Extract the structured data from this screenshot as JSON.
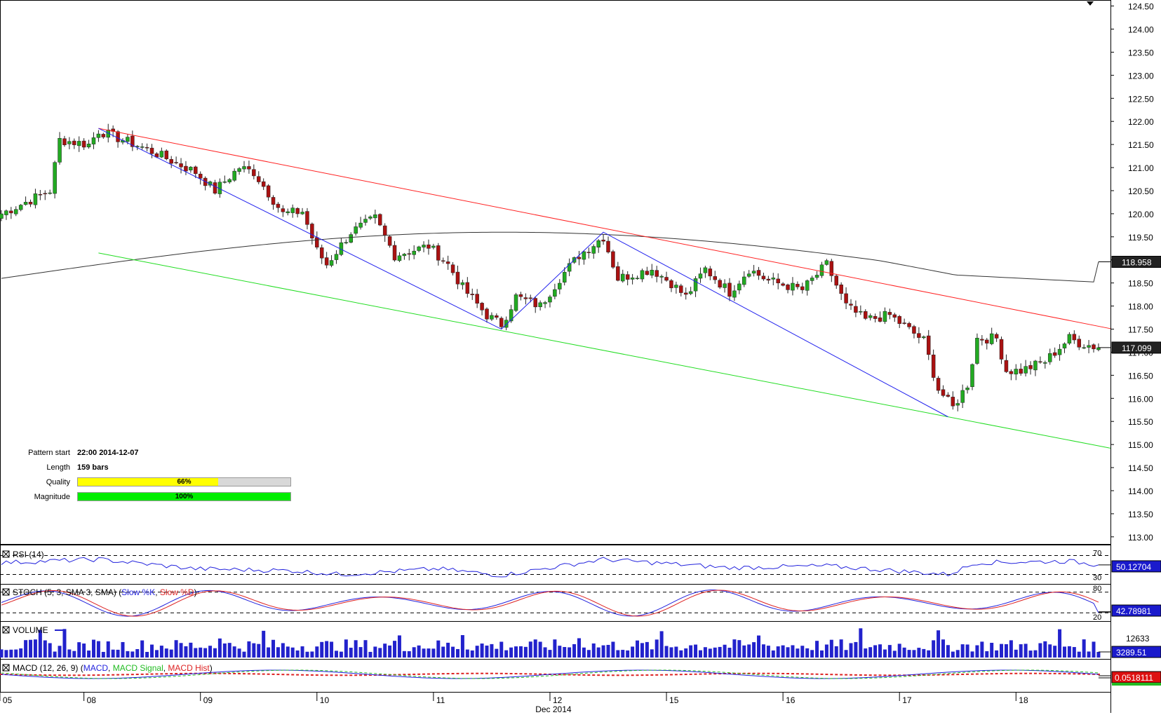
{
  "colors": {
    "bull": "#22aa22",
    "bear": "#aa1111",
    "resistance": "#ff2222",
    "support": "#22dd22",
    "zigzag": "#2222ee",
    "ma": "#333333",
    "quality_fill": "#ffff00",
    "magnitude_fill": "#00ee00",
    "rsi": "#2222dd",
    "stoch_k": "#2222dd",
    "stoch_d": "#dd2222",
    "volume": "#2222cc",
    "macd": "#2222dd",
    "macd_signal": "#22bb22",
    "macd_hist": "#dd2222",
    "tag_bg": "#1a1acc"
  },
  "pattern_info": {
    "start_label": "Pattern start",
    "start_value": "22:00 2014-12-07",
    "length_label": "Length",
    "length_value": "159 bars",
    "quality_label": "Quality",
    "quality_value": "66%",
    "quality_fraction": 0.66,
    "magnitude_label": "Magnitude",
    "magnitude_value": "100%",
    "magnitude_fraction": 1.0
  },
  "chart_data": [
    {
      "type": "candlestick",
      "title": "",
      "y_ticks": [
        "124.50",
        "124.00",
        "123.50",
        "123.00",
        "122.50",
        "122.00",
        "121.50",
        "121.00",
        "120.50",
        "120.00",
        "119.50",
        "119.00",
        "118.50",
        "118.00",
        "117.50",
        "117.00",
        "116.50",
        "116.00",
        "115.50",
        "115.00",
        "114.50",
        "114.00",
        "113.50",
        "113.00"
      ],
      "ylim": [
        112.8,
        124.6
      ],
      "x_ticks": [
        "05",
        "08",
        "09",
        "10",
        "11",
        "12",
        "15",
        "16",
        "17",
        "18"
      ],
      "x_month_label": "Dec 2014",
      "price_tags": [
        "118.958",
        "117.099"
      ],
      "price_tag_values": [
        118.958,
        117.099
      ],
      "moving_average_last": 118.958,
      "last_close": 117.099,
      "pattern": {
        "name": "descending channel",
        "resistance": [
          {
            "bar": 20,
            "price": 121.85
          },
          {
            "bar": 124,
            "price": 119.6
          },
          {
            "bar": 241,
            "price": 117.25
          }
        ],
        "support": [
          {
            "bar": 20,
            "price": 119.15
          },
          {
            "bar": 103,
            "price": 117.5
          },
          {
            "bar": 195,
            "price": 115.6
          }
        ],
        "zigzag": [
          {
            "bar": 20,
            "price": 121.85
          },
          {
            "bar": 103,
            "price": 117.5
          },
          {
            "bar": 124,
            "price": 119.6
          },
          {
            "bar": 195,
            "price": 115.6
          }
        ]
      },
      "candle_anchors": [
        {
          "bar": 0,
          "price": 120.0
        },
        {
          "bar": 10,
          "price": 120.5
        },
        {
          "bar": 12,
          "price": 121.6
        },
        {
          "bar": 18,
          "price": 121.5
        },
        {
          "bar": 20,
          "price": 121.8
        },
        {
          "bar": 30,
          "price": 121.4
        },
        {
          "bar": 40,
          "price": 120.9
        },
        {
          "bar": 44,
          "price": 120.5
        },
        {
          "bar": 49,
          "price": 121.0
        },
        {
          "bar": 52,
          "price": 120.9
        },
        {
          "bar": 58,
          "price": 120.0
        },
        {
          "bar": 62,
          "price": 120.05
        },
        {
          "bar": 65,
          "price": 119.2
        },
        {
          "bar": 67,
          "price": 118.9
        },
        {
          "bar": 72,
          "price": 119.6
        },
        {
          "bar": 77,
          "price": 119.9
        },
        {
          "bar": 81,
          "price": 119.1
        },
        {
          "bar": 88,
          "price": 119.3
        },
        {
          "bar": 92,
          "price": 118.9
        },
        {
          "bar": 95,
          "price": 118.4
        },
        {
          "bar": 100,
          "price": 117.8
        },
        {
          "bar": 103,
          "price": 117.6
        },
        {
          "bar": 106,
          "price": 118.2
        },
        {
          "bar": 111,
          "price": 118.0
        },
        {
          "bar": 115,
          "price": 118.6
        },
        {
          "bar": 119,
          "price": 119.1
        },
        {
          "bar": 124,
          "price": 119.5
        },
        {
          "bar": 127,
          "price": 118.6
        },
        {
          "bar": 134,
          "price": 118.8
        },
        {
          "bar": 138,
          "price": 118.5
        },
        {
          "bar": 141,
          "price": 118.2
        },
        {
          "bar": 145,
          "price": 118.8
        },
        {
          "bar": 150,
          "price": 118.3
        },
        {
          "bar": 154,
          "price": 118.8
        },
        {
          "bar": 158,
          "price": 118.55
        },
        {
          "bar": 165,
          "price": 118.35
        },
        {
          "bar": 170,
          "price": 118.9
        },
        {
          "bar": 174,
          "price": 118.0
        },
        {
          "bar": 178,
          "price": 117.7
        },
        {
          "bar": 183,
          "price": 117.8
        },
        {
          "bar": 190,
          "price": 117.25
        },
        {
          "bar": 193,
          "price": 116.2
        },
        {
          "bar": 196,
          "price": 115.8
        },
        {
          "bar": 199,
          "price": 116.3
        },
        {
          "bar": 201,
          "price": 117.3
        },
        {
          "bar": 205,
          "price": 117.3
        },
        {
          "bar": 207,
          "price": 116.6
        },
        {
          "bar": 210,
          "price": 116.6
        },
        {
          "bar": 215,
          "price": 116.8
        },
        {
          "bar": 220,
          "price": 117.3
        },
        {
          "bar": 222,
          "price": 117.2
        },
        {
          "bar": 226,
          "price": 117.1
        }
      ]
    },
    {
      "type": "line",
      "title": "RSI (14)",
      "levels": [
        "70",
        "30"
      ],
      "level_values": [
        70,
        30
      ],
      "last_value": "50.12704",
      "values_anchor": [
        {
          "bar": 0,
          "value": 55
        },
        {
          "bar": 20,
          "value": 62
        },
        {
          "bar": 40,
          "value": 42
        },
        {
          "bar": 60,
          "value": 38
        },
        {
          "bar": 70,
          "value": 30
        },
        {
          "bar": 90,
          "value": 42
        },
        {
          "bar": 103,
          "value": 28
        },
        {
          "bar": 124,
          "value": 62
        },
        {
          "bar": 150,
          "value": 44
        },
        {
          "bar": 170,
          "value": 48
        },
        {
          "bar": 195,
          "value": 30
        },
        {
          "bar": 201,
          "value": 55
        },
        {
          "bar": 220,
          "value": 58
        },
        {
          "bar": 226,
          "value": 50.13
        }
      ]
    },
    {
      "type": "line",
      "title": "STOCH (5, 3, SMA 3, SMA)",
      "series_names": [
        "Slow %K",
        "Slow %D"
      ],
      "levels": [
        "80",
        "20"
      ],
      "level_values": [
        80,
        20
      ],
      "last_value": "42.78981"
    },
    {
      "type": "bar",
      "title": "VOLUME",
      "ylabel_tick": "12633",
      "last_value": "3289.51"
    },
    {
      "type": "line",
      "title": "MACD (12, 26, 9)",
      "series_names": [
        "MACD",
        "MACD Signal",
        "MACD Hist"
      ],
      "last_value": "0.0518111"
    }
  ]
}
